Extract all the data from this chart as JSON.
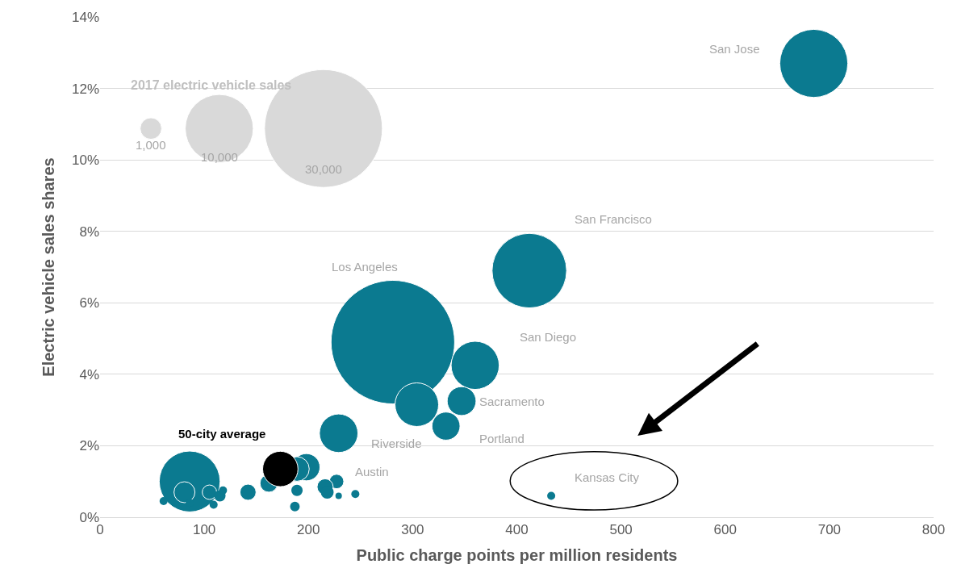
{
  "chart_data": {
    "type": "bubble",
    "xlabel": "Public charge points per million residents",
    "ylabel": "Electric vehicle sales shares",
    "legend_title": "2017 electric vehicle sales",
    "size_legend": [
      {
        "value": 1000,
        "label": "1,000"
      },
      {
        "value": 10000,
        "label": "10,000"
      },
      {
        "value": 30000,
        "label": "30,000"
      }
    ],
    "xlim": [
      0,
      800
    ],
    "xticks": [
      0,
      100,
      200,
      300,
      400,
      500,
      600,
      700,
      800
    ],
    "ylim": [
      0,
      14
    ],
    "yticks": [
      {
        "value": 0,
        "label": "0%"
      },
      {
        "value": 2,
        "label": "2%"
      },
      {
        "value": 4,
        "label": "4%"
      },
      {
        "value": 6,
        "label": "6%"
      },
      {
        "value": 8,
        "label": "8%"
      },
      {
        "value": 10,
        "label": "10%"
      },
      {
        "value": 12,
        "label": "12%"
      },
      {
        "value": 14,
        "label": "14%"
      }
    ],
    "grid": "y",
    "series": [
      {
        "name": "San Jose",
        "color": "#0b7a90",
        "x": [
          685
        ],
        "values": [
          12.7
        ],
        "sizes": [
          10000
        ]
      },
      {
        "name": "San Francisco",
        "color": "#0b7a90",
        "x": [
          412
        ],
        "values": [
          6.9
        ],
        "sizes": [
          12000
        ]
      },
      {
        "name": "Los Angeles",
        "color": "#0b7a90",
        "x": [
          281
        ],
        "values": [
          4.9
        ],
        "sizes": [
          33000
        ]
      },
      {
        "name": "San Diego",
        "color": "#0b7a90",
        "x": [
          360
        ],
        "values": [
          4.25
        ],
        "sizes": [
          5000
        ]
      },
      {
        "name": "Sacramento",
        "color": "#0b7a90",
        "x": [
          347
        ],
        "values": [
          3.25
        ],
        "sizes": [
          1800
        ]
      },
      {
        "name": "Portland",
        "color": "#0b7a90",
        "x": [
          332
        ],
        "values": [
          2.55
        ],
        "sizes": [
          1700
        ]
      },
      {
        "name": "Riverside",
        "color": "#0b7a90",
        "x": [
          229
        ],
        "values": [
          2.35
        ],
        "sizes": [
          3200
        ]
      },
      {
        "name": "Austin",
        "color": "#0b7a90",
        "x": [
          227
        ],
        "values": [
          1.0
        ],
        "sizes": [
          450
        ]
      },
      {
        "name": "Kansas City",
        "color": "#0b7a90",
        "x": [
          433
        ],
        "values": [
          0.6
        ],
        "sizes": [
          140
        ]
      },
      {
        "color": "#0b7a90",
        "x": [
          304,
          86,
          81,
          105,
          115,
          118,
          61,
          86,
          109,
          142,
          162,
          198,
          189,
          189,
          187,
          216,
          218,
          229,
          245
        ],
        "values": [
          3.15,
          1.0,
          0.7,
          0.7,
          0.6,
          0.75,
          0.45,
          0.4,
          0.35,
          0.7,
          0.95,
          1.4,
          1.35,
          0.75,
          0.3,
          0.85,
          0.7,
          0.6,
          0.65
        ],
        "sizes": [
          4100,
          8000,
          950,
          450,
          280,
          140,
          140,
          140,
          140,
          560,
          680,
          1600,
          1300,
          280,
          200,
          560,
          360,
          90,
          140
        ]
      },
      {
        "name": "50-city average",
        "color": "#000000",
        "x": [
          173
        ],
        "values": [
          1.35
        ],
        "sizes": [
          2700
        ]
      }
    ]
  }
}
